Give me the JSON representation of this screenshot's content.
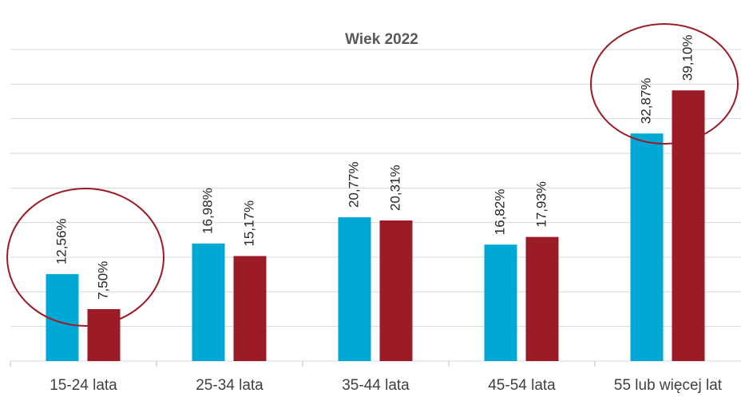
{
  "chart_data": {
    "type": "bar",
    "title": "Wiek 2022",
    "categories": [
      "15-24 lata",
      "25-34 lata",
      "35-44 lata",
      "45-54 lata",
      "55 lub więcej lat"
    ],
    "series": [
      {
        "color": "#00a8d6",
        "values": [
          12.56,
          16.98,
          20.77,
          16.82,
          32.87
        ],
        "value_labels": [
          "12,56%",
          "16,98%",
          "20,77%",
          "16,82%",
          "32,87%"
        ]
      },
      {
        "color": "#9b1b26",
        "values": [
          7.5,
          15.17,
          20.31,
          17.93,
          39.1
        ],
        "value_labels": [
          "7,50%",
          "15,17%",
          "20,31%",
          "17,93%",
          "39,10%"
        ]
      }
    ],
    "ylim": [
      0,
      45
    ],
    "yticks": [
      0,
      5,
      10,
      15,
      20,
      25,
      30,
      35,
      40,
      45
    ],
    "grid": true
  }
}
